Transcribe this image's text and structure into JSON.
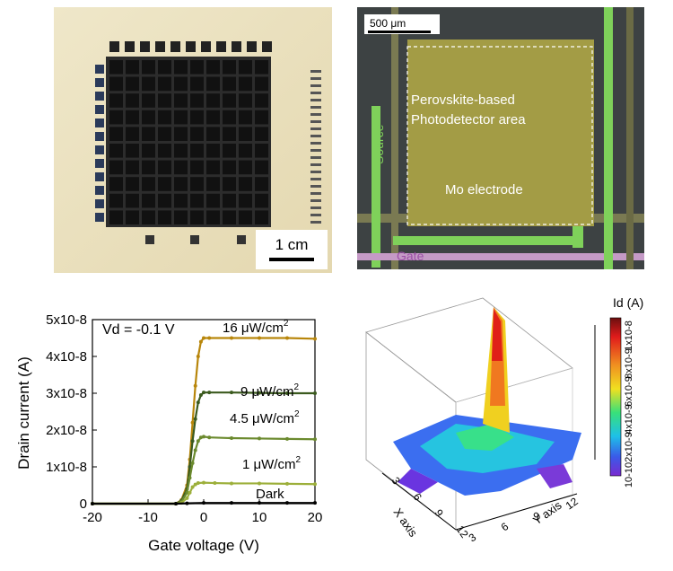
{
  "panel_a": {
    "scale_label": "1 cm"
  },
  "panel_b": {
    "scale_label": "500 μm",
    "area_label_line1": "Perovskite-based",
    "area_label_line2": "Photodetector area",
    "electrode_label": "Mo electrode",
    "source_label": "Source",
    "gate_label": "Gate"
  },
  "panel_d": {
    "colorbar_title": "Id (A)",
    "colorbar_ticks": [
      "1x10-8",
      "8x10-9",
      "6x10-9",
      "4x10-9",
      "2x10-9",
      "10-10"
    ],
    "x_axis_label": "X axis",
    "y_axis_label": "Y axis",
    "x_ticks": [
      "3",
      "6",
      "9",
      "12"
    ],
    "y_ticks": [
      "3",
      "6",
      "9",
      "12"
    ]
  },
  "chart_data": {
    "type": "line",
    "xlabel": "Gate voltage (V)",
    "ylabel": "Drain current (A)",
    "annotation": "Vd = -0.1 V",
    "xlim": [
      -20,
      20
    ],
    "ylim": [
      0,
      5e-08
    ],
    "x_ticks": [
      "-20",
      "-10",
      "0",
      "10",
      "20"
    ],
    "y_ticks": [
      "0",
      "1x10-8",
      "2x10-8",
      "3x10-8",
      "4x10-8",
      "5x10-8"
    ],
    "y_tick_values": [
      0,
      1e-08,
      2e-08,
      3e-08,
      4e-08,
      5e-08
    ],
    "series": [
      {
        "name": "16 μW/cm2",
        "color": "#b8860b",
        "x": [
          -20,
          -5,
          -4,
          -3,
          -2.5,
          -2,
          -1.5,
          -1,
          -0.5,
          0,
          1,
          5,
          10,
          15,
          20
        ],
        "values": [
          0,
          0,
          1e-09,
          5e-09,
          1.2e-08,
          2.2e-08,
          3.2e-08,
          4e-08,
          4.4e-08,
          4.5e-08,
          4.5e-08,
          4.5e-08,
          4.5e-08,
          4.5e-08,
          4.48e-08
        ]
      },
      {
        "name": "9 μW/cm2",
        "color": "#3b5a1e",
        "x": [
          -20,
          -5,
          -4,
          -3,
          -2.5,
          -2,
          -1.5,
          -1,
          -0.5,
          0,
          1,
          5,
          10,
          15,
          20
        ],
        "values": [
          0,
          0,
          8e-10,
          4e-09,
          1e-08,
          1.7e-08,
          2.3e-08,
          2.75e-08,
          2.95e-08,
          3.02e-08,
          3.02e-08,
          3.02e-08,
          3.01e-08,
          3e-08,
          3e-08
        ]
      },
      {
        "name": "4.5 μW/cm2",
        "color": "#6b8a2e",
        "x": [
          -20,
          -5,
          -4,
          -3,
          -2.5,
          -2,
          -1.5,
          -1,
          -0.5,
          0,
          1,
          5,
          10,
          15,
          20
        ],
        "values": [
          0,
          0,
          5e-10,
          3e-09,
          7e-09,
          1.1e-08,
          1.45e-08,
          1.7e-08,
          1.8e-08,
          1.82e-08,
          1.8e-08,
          1.78e-08,
          1.77e-08,
          1.76e-08,
          1.75e-08
        ]
      },
      {
        "name": "1 μW/cm2",
        "color": "#9caf3a",
        "x": [
          -20,
          -5,
          -4,
          -3,
          -2.5,
          -2,
          -1.5,
          -1,
          0,
          2,
          5,
          10,
          15,
          20
        ],
        "values": [
          0,
          0,
          2e-10,
          1.5e-09,
          3e-09,
          4.5e-09,
          5.2e-09,
          5.6e-09,
          5.7e-09,
          5.6e-09,
          5.5e-09,
          5.5e-09,
          5.4e-09,
          5.3e-09
        ]
      },
      {
        "name": "Dark",
        "color": "#000000",
        "x": [
          -20,
          -5,
          -3,
          0,
          5,
          10,
          15,
          20
        ],
        "values": [
          0,
          0,
          1e-10,
          2e-10,
          2e-10,
          2e-10,
          2e-10,
          2e-10
        ]
      }
    ],
    "series_label_texts": [
      "16 μW/cm",
      "9 μW/cm",
      "4.5 μW/cm",
      "1 μW/cm",
      "Dark"
    ],
    "superscript": "2"
  }
}
